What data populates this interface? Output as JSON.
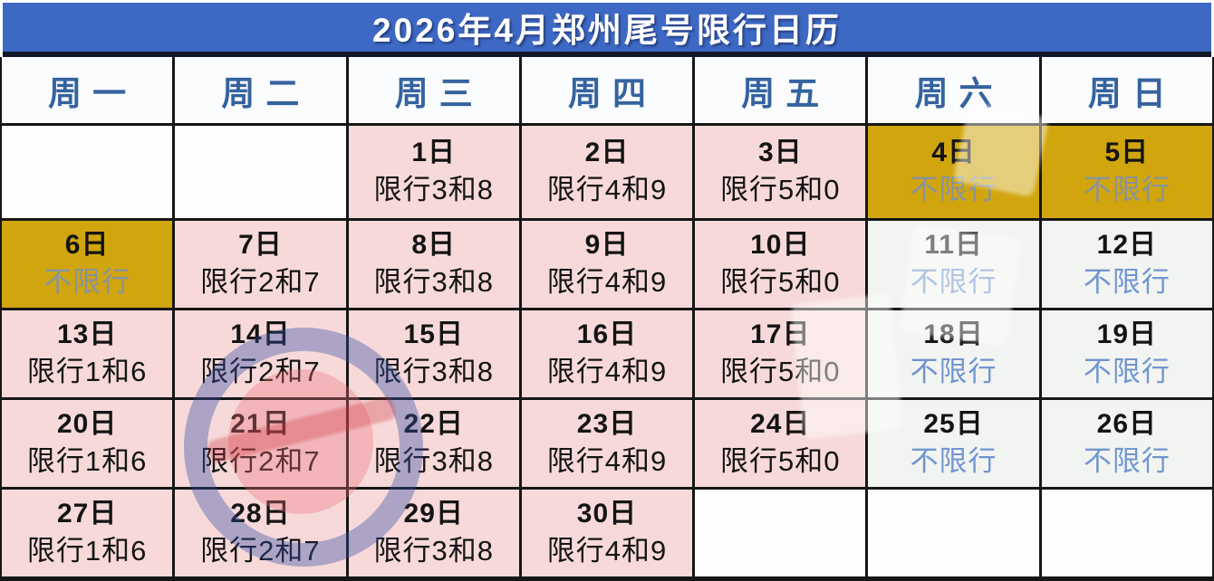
{
  "title": "2026年4月郑州尾号限行日历",
  "weekdays": [
    "周一",
    "周二",
    "周三",
    "周四",
    "周五",
    "周六",
    "周日"
  ],
  "legend": {
    "restricted_label": "限行",
    "no_restriction_label": "不限行"
  },
  "colors": {
    "title_bar_bg": "#3d68c4",
    "title_text": "#ffffff",
    "weekday_text": "#35639f",
    "restricted_cell_bg": "#f7d9d9",
    "holiday_no_restriction_bg": "#d0a50e",
    "weekend_no_restriction_bg": "#f2f4f1",
    "restricted_text": "#141414",
    "weekend_no_restriction_text": "#7195d0",
    "holiday_no_restriction_text": "#87949f",
    "grid_border": "#161616"
  },
  "cells": [
    {
      "day": "",
      "note": "",
      "type": "empty"
    },
    {
      "day": "",
      "note": "",
      "type": "empty"
    },
    {
      "day": "1日",
      "note": "限行3和8",
      "type": "restricted"
    },
    {
      "day": "2日",
      "note": "限行4和9",
      "type": "restricted"
    },
    {
      "day": "3日",
      "note": "限行5和0",
      "type": "restricted"
    },
    {
      "day": "4日",
      "note": "不限行",
      "type": "holiday"
    },
    {
      "day": "5日",
      "note": "不限行",
      "type": "holiday"
    },
    {
      "day": "6日",
      "note": "不限行",
      "type": "holiday"
    },
    {
      "day": "7日",
      "note": "限行2和7",
      "type": "restricted"
    },
    {
      "day": "8日",
      "note": "限行3和8",
      "type": "restricted"
    },
    {
      "day": "9日",
      "note": "限行4和9",
      "type": "restricted"
    },
    {
      "day": "10日",
      "note": "限行5和0",
      "type": "restricted"
    },
    {
      "day": "11日",
      "note": "不限行",
      "type": "weekend"
    },
    {
      "day": "12日",
      "note": "不限行",
      "type": "weekend"
    },
    {
      "day": "13日",
      "note": "限行1和6",
      "type": "restricted"
    },
    {
      "day": "14日",
      "note": "限行2和7",
      "type": "restricted"
    },
    {
      "day": "15日",
      "note": "限行3和8",
      "type": "restricted"
    },
    {
      "day": "16日",
      "note": "限行4和9",
      "type": "restricted"
    },
    {
      "day": "17日",
      "note": "限行5和0",
      "type": "restricted"
    },
    {
      "day": "18日",
      "note": "不限行",
      "type": "weekend"
    },
    {
      "day": "19日",
      "note": "不限行",
      "type": "weekend"
    },
    {
      "day": "20日",
      "note": "限行1和6",
      "type": "restricted"
    },
    {
      "day": "21日",
      "note": "限行2和7",
      "type": "restricted"
    },
    {
      "day": "22日",
      "note": "限行3和8",
      "type": "restricted"
    },
    {
      "day": "23日",
      "note": "限行4和9",
      "type": "restricted"
    },
    {
      "day": "24日",
      "note": "限行5和0",
      "type": "restricted"
    },
    {
      "day": "25日",
      "note": "不限行",
      "type": "weekend"
    },
    {
      "day": "26日",
      "note": "不限行",
      "type": "weekend"
    },
    {
      "day": "27日",
      "note": "限行1和6",
      "type": "restricted"
    },
    {
      "day": "28日",
      "note": "限行2和7",
      "type": "restricted"
    },
    {
      "day": "29日",
      "note": "限行3和8",
      "type": "restricted"
    },
    {
      "day": "30日",
      "note": "限行4和9",
      "type": "restricted"
    },
    {
      "day": "",
      "note": "",
      "type": "empty"
    },
    {
      "day": "",
      "note": "",
      "type": "empty"
    },
    {
      "day": "",
      "note": "",
      "type": "empty"
    }
  ]
}
